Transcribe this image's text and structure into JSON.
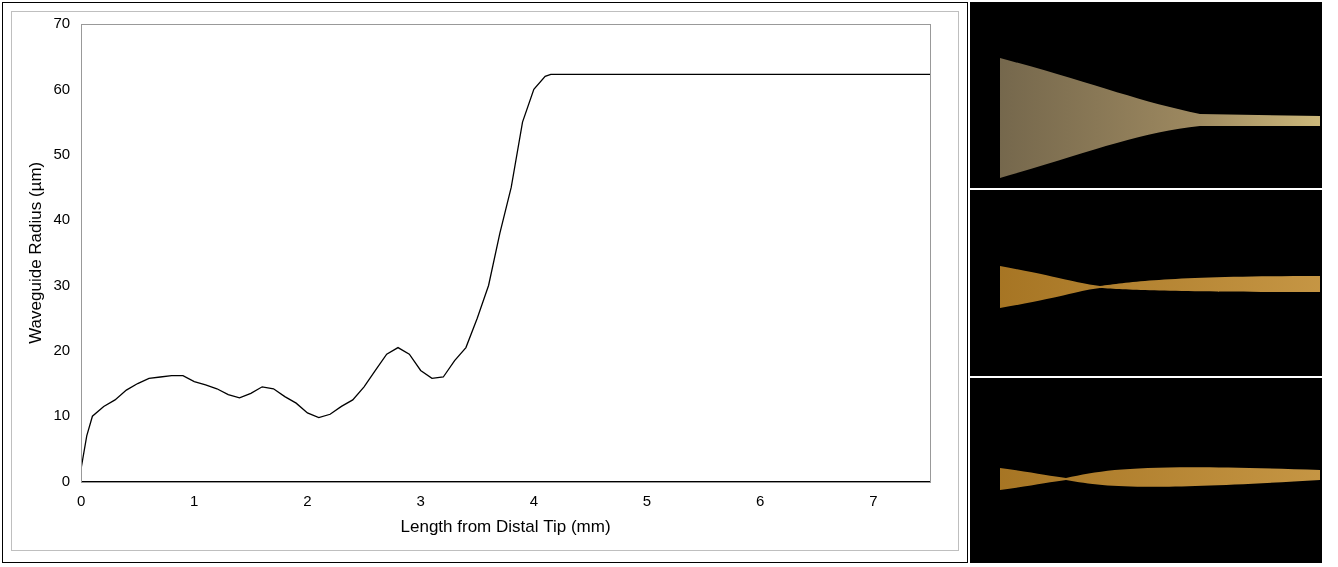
{
  "chart_data": {
    "type": "line",
    "x_label": "Length from Distal Tip (mm)",
    "y_label": "Waveguide Radius (µm)",
    "x": [
      0,
      0.05,
      0.1,
      0.2,
      0.3,
      0.4,
      0.5,
      0.6,
      0.7,
      0.8,
      0.9,
      1.0,
      1.1,
      1.2,
      1.3,
      1.4,
      1.5,
      1.6,
      1.7,
      1.8,
      1.9,
      2.0,
      2.1,
      2.2,
      2.3,
      2.4,
      2.5,
      2.6,
      2.7,
      2.8,
      2.9,
      3.0,
      3.1,
      3.2,
      3.3,
      3.4,
      3.5,
      3.6,
      3.7,
      3.8,
      3.9,
      4.0,
      4.1,
      4.15,
      7.5
    ],
    "values": [
      2,
      7,
      10,
      11.5,
      12.5,
      14,
      15,
      15.8,
      16,
      16.2,
      16.2,
      15.3,
      14.8,
      14.2,
      13.3,
      12.8,
      13.5,
      14.5,
      14.2,
      13,
      12,
      10.5,
      9.8,
      10.3,
      11.5,
      12.5,
      14.5,
      17,
      19.5,
      20.5,
      19.5,
      17,
      15.8,
      16,
      18.5,
      20.5,
      25,
      30,
      38,
      45,
      55,
      60,
      62,
      62.3,
      62.3
    ],
    "color": "#000000",
    "xlim": [
      0,
      7.5
    ],
    "ylim": [
      0,
      70
    ],
    "xticks": [
      0,
      1,
      2,
      3,
      4,
      5,
      6,
      7
    ],
    "yticks": [
      0,
      10,
      20,
      30,
      40,
      50,
      60,
      70
    ],
    "grid": false
  }
}
